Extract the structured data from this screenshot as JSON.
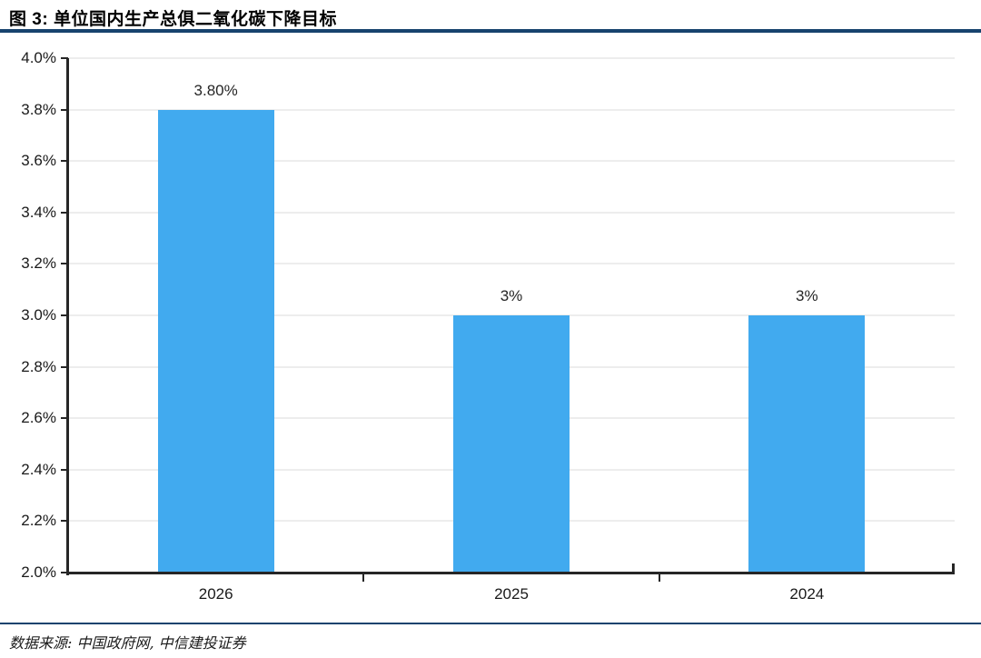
{
  "figure": {
    "title": "图 3: 单位国内生产总俱二氧化碳下降目标",
    "source": "数据来源: 中国政府网, 中信建投证券"
  },
  "chart_data": {
    "type": "bar",
    "title": "单位国内生产总俱二氧化碳下降目标",
    "categories": [
      "2026",
      "2025",
      "2024"
    ],
    "values": [
      3.8,
      3.0,
      3.0
    ],
    "bar_labels": [
      "3.80%",
      "3%",
      "3%"
    ],
    "xlabel": "",
    "ylabel": "",
    "ylim": [
      2.0,
      4.0
    ],
    "y_ticks": [
      {
        "value": 4.0,
        "label": "4.0%"
      },
      {
        "value": 3.8,
        "label": "3.8%"
      },
      {
        "value": 3.6,
        "label": "3.6%"
      },
      {
        "value": 3.4,
        "label": "3.4%"
      },
      {
        "value": 3.2,
        "label": "3.2%"
      },
      {
        "value": 3.0,
        "label": "3.0%"
      },
      {
        "value": 2.8,
        "label": "2.8%"
      },
      {
        "value": 2.6,
        "label": "2.6%"
      },
      {
        "value": 2.4,
        "label": "2.4%"
      },
      {
        "value": 2.2,
        "label": "2.2%"
      },
      {
        "value": 2.0,
        "label": "2.0%"
      }
    ],
    "grid": true,
    "legend": false,
    "colors": {
      "bar": "#41AAEF",
      "grid": "#EDEDED",
      "axis": "#262626",
      "tick_text": "#1A1A1A",
      "divider": "#17436E"
    }
  }
}
